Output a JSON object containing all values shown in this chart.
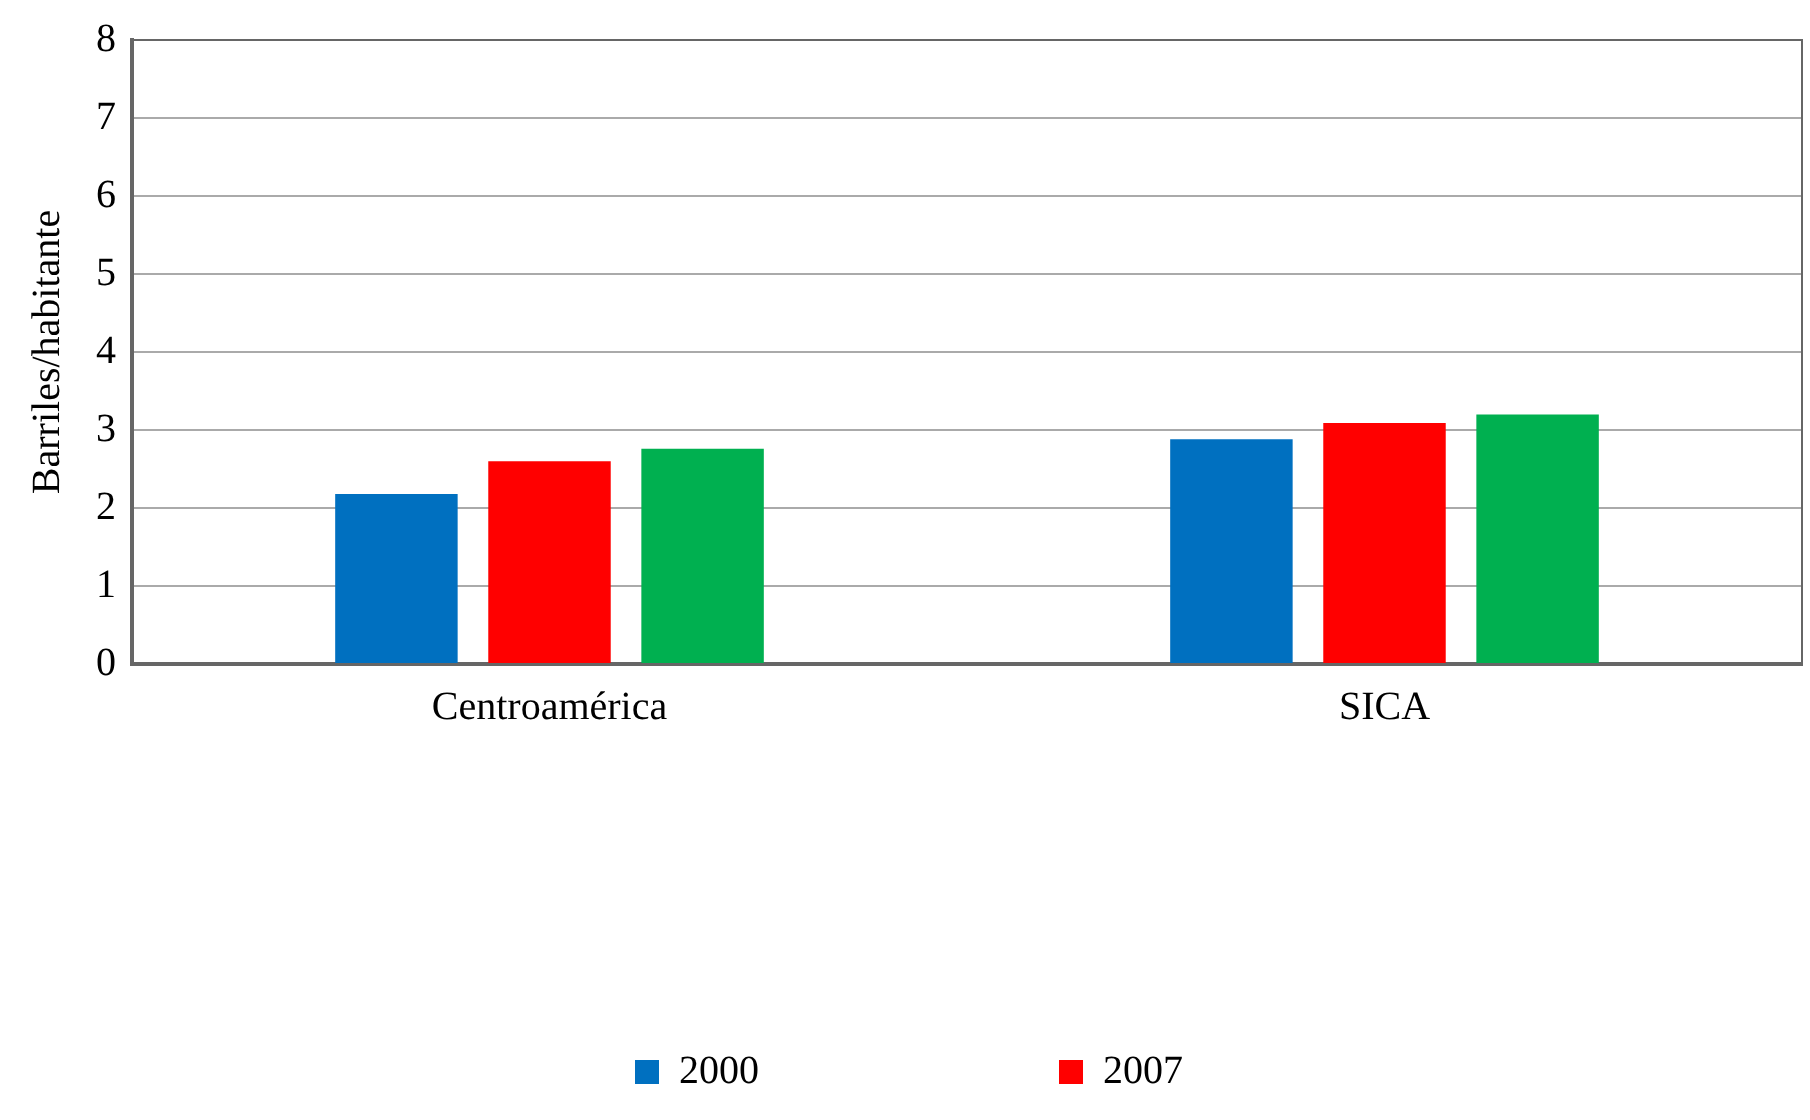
{
  "chart_data": {
    "type": "bar",
    "ylabel": "Barriles/habitante",
    "categories": [
      "Centroamérica",
      "SICA"
    ],
    "series": [
      {
        "name": "2000",
        "color": "#0070c0",
        "values": [
          2.18,
          2.88
        ]
      },
      {
        "name": "2007",
        "color": "#ff0000",
        "values": [
          2.6,
          3.09
        ]
      },
      {
        "color": "#00b050",
        "values": [
          2.76,
          3.2
        ]
      }
    ],
    "ylim": [
      0,
      8
    ],
    "yticks": [
      0,
      1,
      2,
      3,
      4,
      5,
      6,
      7,
      8
    ],
    "grid": "y",
    "legend": "bottom"
  }
}
